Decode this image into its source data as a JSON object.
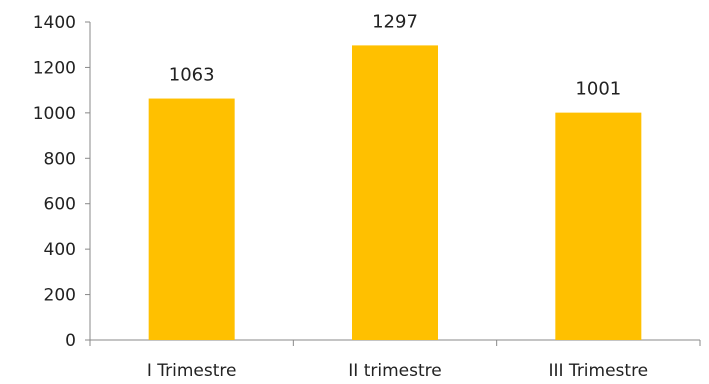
{
  "chart_data": {
    "type": "bar",
    "categories": [
      "I Trimestre",
      "II trimestre",
      "III Trimestre"
    ],
    "values": [
      1063,
      1297,
      1001
    ],
    "data_labels": [
      "1063",
      "1297",
      "1001"
    ],
    "ylim": [
      0,
      1400
    ],
    "yticks": [
      0,
      200,
      400,
      600,
      800,
      1000,
      1200,
      1400
    ],
    "ytick_labels": [
      "0",
      "200",
      "400",
      "600",
      "800",
      "1000",
      "1200",
      "1400"
    ],
    "grid": false,
    "legend": "none",
    "bar_color": "#FFC000"
  }
}
